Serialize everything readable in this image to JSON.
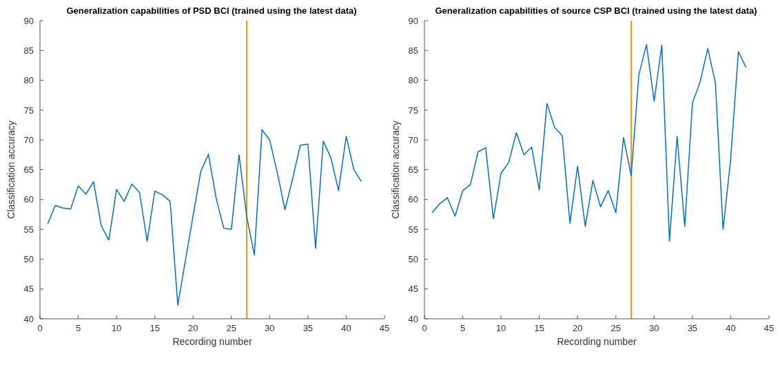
{
  "chart_data": [
    {
      "type": "line",
      "title": "Generalization capabilities of PSD BCI (trained using the latest data)",
      "xlabel": "Recording number",
      "ylabel": "Classification accuracy",
      "x": [
        1,
        2,
        3,
        4,
        5,
        6,
        7,
        8,
        9,
        10,
        11,
        12,
        13,
        14,
        15,
        16,
        17,
        18,
        19,
        20,
        21,
        22,
        23,
        24,
        25,
        26,
        27,
        28,
        29,
        30,
        31,
        32,
        33,
        34,
        35,
        36,
        37,
        38,
        39,
        40,
        41,
        42
      ],
      "series": [
        {
          "color": "#0072bd",
          "values": [
            55.9,
            59.0,
            58.6,
            58.4,
            62.3,
            60.9,
            63.0,
            55.6,
            53.2,
            61.7,
            59.7,
            62.6,
            61.2,
            53.0,
            61.4,
            60.8,
            59.7,
            42.3,
            49.8,
            57.3,
            64.7,
            67.6,
            60.3,
            55.2,
            55.0,
            67.5,
            57.2,
            50.7,
            71.7,
            70.0,
            64.5,
            58.3,
            63.5,
            69.1,
            69.3,
            51.8,
            69.8,
            67.0,
            61.5,
            70.6,
            65.0,
            63.0
          ]
        }
      ],
      "xlim": [
        0,
        45
      ],
      "xticks": [
        0,
        5,
        10,
        15,
        20,
        25,
        30,
        35,
        40,
        45
      ],
      "ylim": [
        40,
        90
      ],
      "yticks": [
        40,
        45,
        50,
        55,
        60,
        65,
        70,
        75,
        80,
        85,
        90
      ],
      "ref_lines": [
        {
          "axis": "x",
          "value": 27,
          "color": "#f39c12"
        }
      ]
    },
    {
      "type": "line",
      "title": "Generalization capabilities of source CSP BCI (trained using the latest data)",
      "xlabel": "Recording number",
      "ylabel": "Classification accuracy",
      "x": [
        1,
        2,
        3,
        4,
        5,
        6,
        7,
        8,
        9,
        10,
        11,
        12,
        13,
        14,
        15,
        16,
        17,
        18,
        19,
        20,
        21,
        22,
        23,
        24,
        25,
        26,
        27,
        28,
        29,
        30,
        31,
        32,
        33,
        34,
        35,
        36,
        37,
        38,
        39,
        40,
        41,
        42
      ],
      "series": [
        {
          "color": "#0072bd",
          "values": [
            57.8,
            59.3,
            60.3,
            57.2,
            61.5,
            62.5,
            68.0,
            68.7,
            56.8,
            64.4,
            66.2,
            71.2,
            67.5,
            68.8,
            61.6,
            76.1,
            72.1,
            70.7,
            56.0,
            65.6,
            55.5,
            63.2,
            58.8,
            61.5,
            57.8,
            70.4,
            64.0,
            80.9,
            86.0,
            76.5,
            85.9,
            53.0,
            70.6,
            55.5,
            76.2,
            79.7,
            85.3,
            79.6,
            55.0,
            66.8,
            84.8,
            82.2
          ]
        }
      ],
      "xlim": [
        0,
        45
      ],
      "xticks": [
        0,
        5,
        10,
        15,
        20,
        25,
        30,
        35,
        40,
        45
      ],
      "ylim": [
        40,
        90
      ],
      "yticks": [
        40,
        45,
        50,
        55,
        60,
        65,
        70,
        75,
        80,
        85,
        90
      ],
      "ref_lines": [
        {
          "axis": "x",
          "value": 27,
          "color": "#f39c12"
        }
      ]
    }
  ]
}
